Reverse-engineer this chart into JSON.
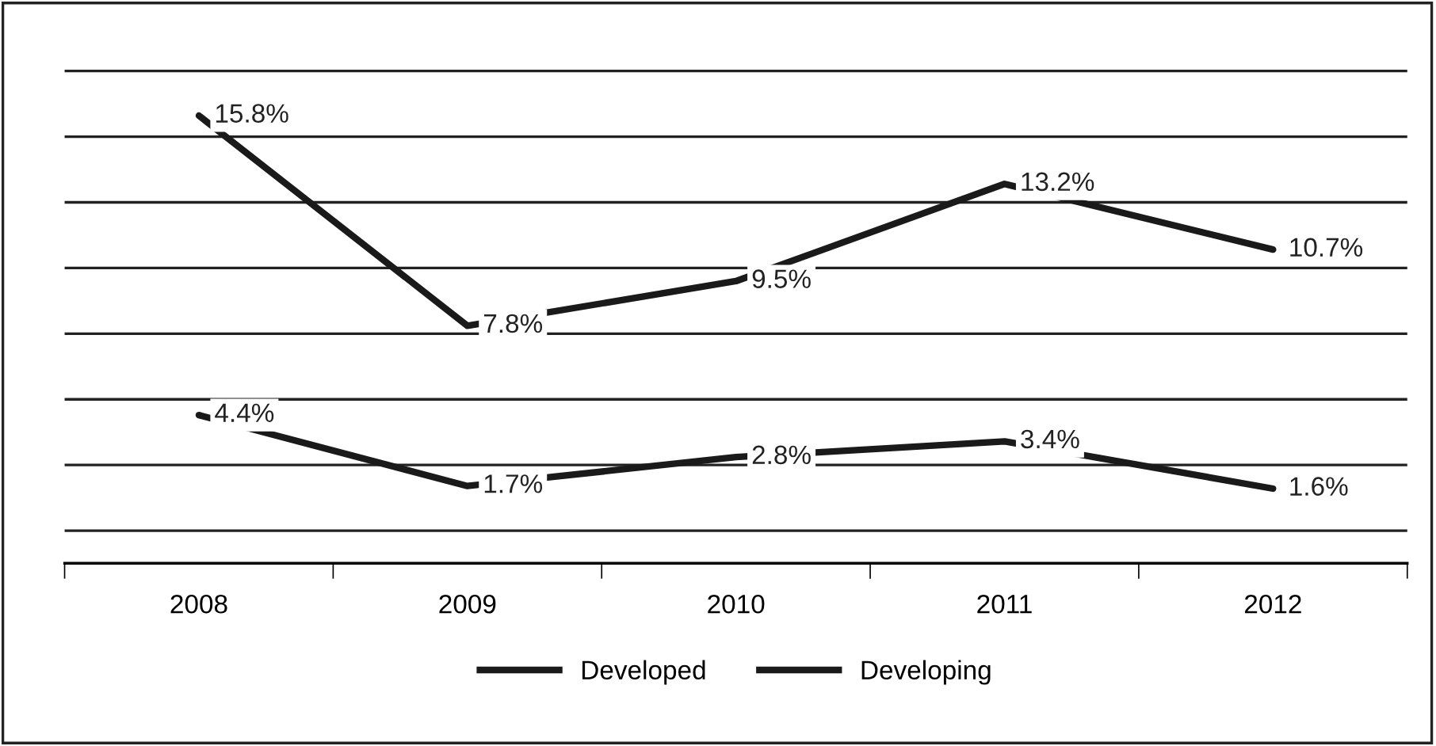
{
  "chart_data": {
    "type": "line",
    "categories": [
      "2008",
      "2009",
      "2010",
      "2011",
      "2012"
    ],
    "series": [
      {
        "name": "Developed",
        "color": "#1a1a1a",
        "values": [
          4.4,
          1.7,
          2.8,
          3.4,
          1.6
        ],
        "value_labels": [
          "4.4%",
          "1.7%",
          "2.8%",
          "3.4%",
          "1.6%"
        ]
      },
      {
        "name": "Developing",
        "color": "#1a1a1a",
        "values": [
          15.8,
          7.8,
          9.5,
          13.2,
          10.7
        ],
        "value_labels": [
          "15.8%",
          "7.8%",
          "9.5%",
          "13.2%",
          "10.7%"
        ]
      }
    ],
    "tick_labels": "x",
    "grid": "y",
    "legend": "bottom",
    "marker": "none",
    "line_style": "solid"
  }
}
